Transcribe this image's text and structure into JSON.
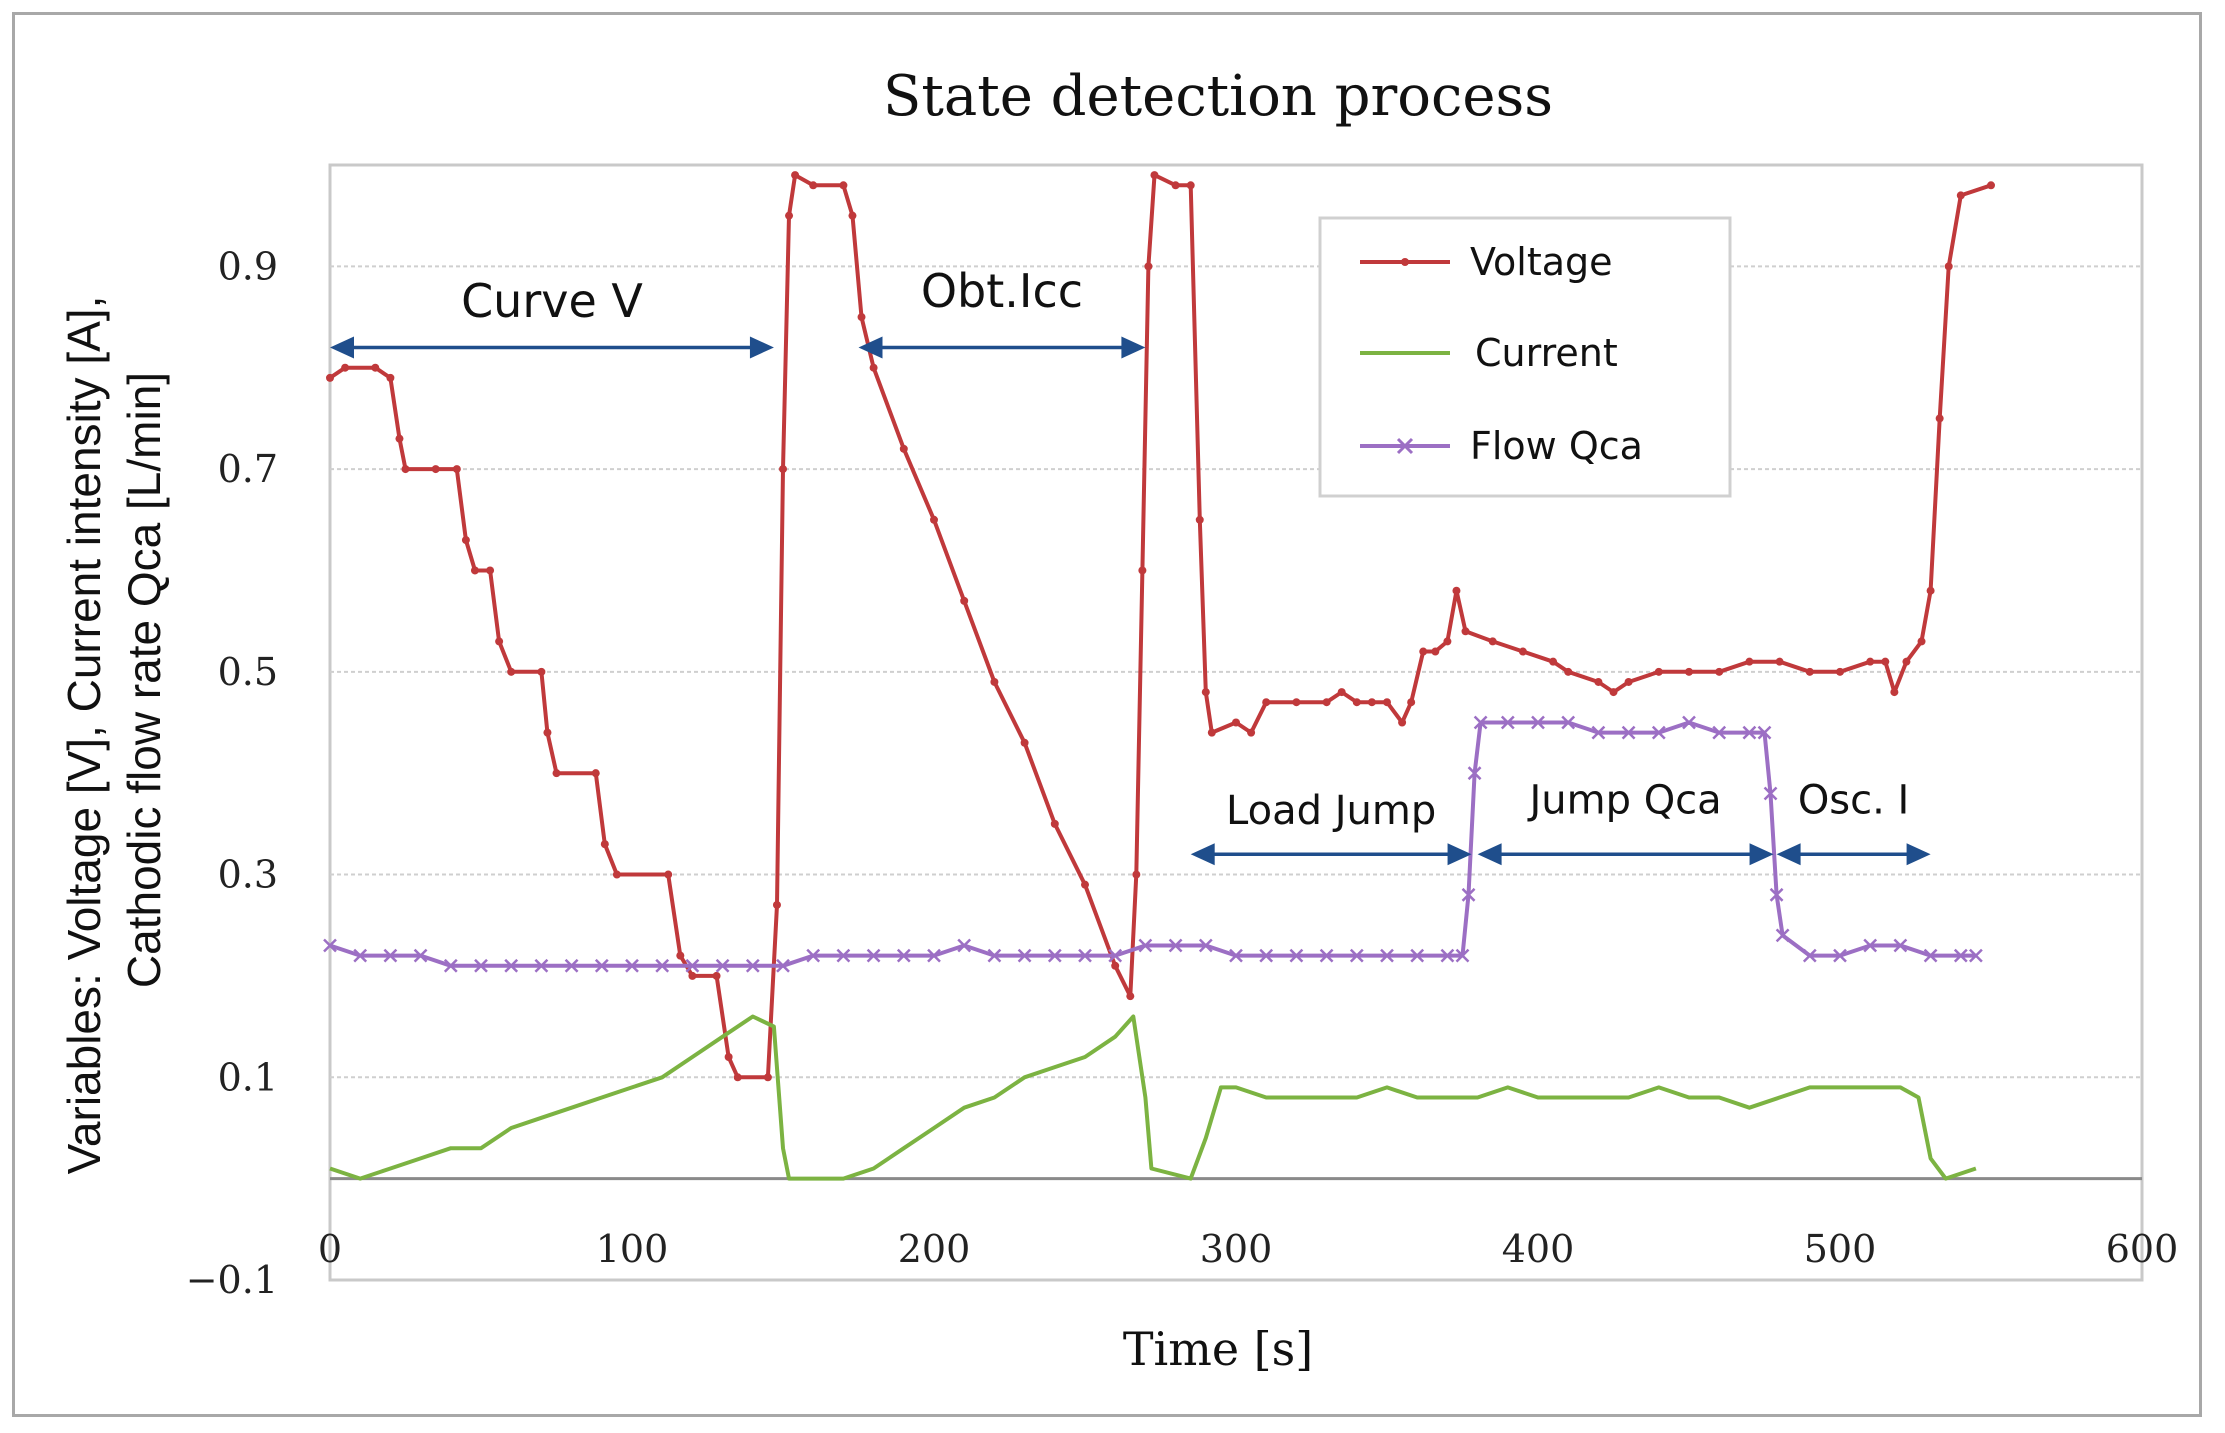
{
  "chart_data": {
    "type": "line",
    "title": "State detection process",
    "xlabel": "Time [s]",
    "ylabel_line1": "Variables: Voltage [V], Current intensity [A],",
    "ylabel_line2": "Cathodic flow rate Qca [L/min]",
    "xlim": [
      0,
      600
    ],
    "ylim": [
      -0.1,
      1.0
    ],
    "x_ticks": [
      0,
      100,
      200,
      300,
      400,
      500,
      600
    ],
    "y_ticks": [
      -0.1,
      0.1,
      0.3,
      0.5,
      0.7,
      0.9
    ],
    "y_tick_labels": [
      "−0.1",
      "0.1",
      "0.3",
      "0.5",
      "0.7",
      "0.9"
    ],
    "gridlines_y": [
      0,
      0.1,
      0.3,
      0.5,
      0.7,
      0.9
    ],
    "legend_position": "top-right",
    "series": [
      {
        "name": "Voltage",
        "color": "#c0393b",
        "marker": "dot",
        "points": [
          [
            0,
            0.79
          ],
          [
            5,
            0.8
          ],
          [
            15,
            0.8
          ],
          [
            20,
            0.79
          ],
          [
            23,
            0.73
          ],
          [
            25,
            0.7
          ],
          [
            35,
            0.7
          ],
          [
            42,
            0.7
          ],
          [
            45,
            0.63
          ],
          [
            48,
            0.6
          ],
          [
            53,
            0.6
          ],
          [
            56,
            0.53
          ],
          [
            60,
            0.5
          ],
          [
            70,
            0.5
          ],
          [
            72,
            0.44
          ],
          [
            75,
            0.4
          ],
          [
            88,
            0.4
          ],
          [
            91,
            0.33
          ],
          [
            95,
            0.3
          ],
          [
            112,
            0.3
          ],
          [
            116,
            0.22
          ],
          [
            120,
            0.2
          ],
          [
            128,
            0.2
          ],
          [
            132,
            0.12
          ],
          [
            135,
            0.1
          ],
          [
            145,
            0.1
          ],
          [
            148,
            0.27
          ],
          [
            150,
            0.7
          ],
          [
            152,
            0.95
          ],
          [
            154,
            0.99
          ],
          [
            160,
            0.98
          ],
          [
            170,
            0.98
          ],
          [
            173,
            0.95
          ],
          [
            176,
            0.85
          ],
          [
            180,
            0.8
          ],
          [
            190,
            0.72
          ],
          [
            200,
            0.65
          ],
          [
            210,
            0.57
          ],
          [
            220,
            0.49
          ],
          [
            230,
            0.43
          ],
          [
            240,
            0.35
          ],
          [
            250,
            0.29
          ],
          [
            260,
            0.21
          ],
          [
            265,
            0.18
          ],
          [
            267,
            0.3
          ],
          [
            269,
            0.6
          ],
          [
            271,
            0.9
          ],
          [
            273,
            0.99
          ],
          [
            280,
            0.98
          ],
          [
            285,
            0.98
          ],
          [
            288,
            0.65
          ],
          [
            290,
            0.48
          ],
          [
            292,
            0.44
          ],
          [
            300,
            0.45
          ],
          [
            305,
            0.44
          ],
          [
            310,
            0.47
          ],
          [
            320,
            0.47
          ],
          [
            330,
            0.47
          ],
          [
            335,
            0.48
          ],
          [
            340,
            0.47
          ],
          [
            345,
            0.47
          ],
          [
            350,
            0.47
          ],
          [
            355,
            0.45
          ],
          [
            358,
            0.47
          ],
          [
            362,
            0.52
          ],
          [
            366,
            0.52
          ],
          [
            370,
            0.53
          ],
          [
            373,
            0.58
          ],
          [
            376,
            0.54
          ],
          [
            385,
            0.53
          ],
          [
            395,
            0.52
          ],
          [
            405,
            0.51
          ],
          [
            410,
            0.5
          ],
          [
            420,
            0.49
          ],
          [
            425,
            0.48
          ],
          [
            430,
            0.49
          ],
          [
            440,
            0.5
          ],
          [
            450,
            0.5
          ],
          [
            460,
            0.5
          ],
          [
            470,
            0.51
          ],
          [
            480,
            0.51
          ],
          [
            490,
            0.5
          ],
          [
            500,
            0.5
          ],
          [
            510,
            0.51
          ],
          [
            515,
            0.51
          ],
          [
            518,
            0.48
          ],
          [
            522,
            0.51
          ],
          [
            527,
            0.53
          ],
          [
            530,
            0.58
          ],
          [
            533,
            0.75
          ],
          [
            536,
            0.9
          ],
          [
            540,
            0.97
          ],
          [
            550,
            0.98
          ]
        ]
      },
      {
        "name": "Current",
        "color": "#7cb342",
        "marker": "none",
        "points": [
          [
            0,
            0.01
          ],
          [
            10,
            0.0
          ],
          [
            20,
            0.01
          ],
          [
            30,
            0.02
          ],
          [
            40,
            0.03
          ],
          [
            50,
            0.03
          ],
          [
            60,
            0.05
          ],
          [
            70,
            0.06
          ],
          [
            80,
            0.07
          ],
          [
            90,
            0.08
          ],
          [
            100,
            0.09
          ],
          [
            110,
            0.1
          ],
          [
            120,
            0.12
          ],
          [
            130,
            0.14
          ],
          [
            140,
            0.16
          ],
          [
            147,
            0.15
          ],
          [
            150,
            0.03
          ],
          [
            152,
            0.0
          ],
          [
            170,
            0.0
          ],
          [
            180,
            0.01
          ],
          [
            190,
            0.03
          ],
          [
            200,
            0.05
          ],
          [
            210,
            0.07
          ],
          [
            220,
            0.08
          ],
          [
            230,
            0.1
          ],
          [
            240,
            0.11
          ],
          [
            250,
            0.12
          ],
          [
            260,
            0.14
          ],
          [
            266,
            0.16
          ],
          [
            270,
            0.08
          ],
          [
            272,
            0.01
          ],
          [
            285,
            0.0
          ],
          [
            290,
            0.04
          ],
          [
            295,
            0.09
          ],
          [
            300,
            0.09
          ],
          [
            310,
            0.08
          ],
          [
            320,
            0.08
          ],
          [
            330,
            0.08
          ],
          [
            340,
            0.08
          ],
          [
            350,
            0.09
          ],
          [
            360,
            0.08
          ],
          [
            370,
            0.08
          ],
          [
            380,
            0.08
          ],
          [
            390,
            0.09
          ],
          [
            400,
            0.08
          ],
          [
            410,
            0.08
          ],
          [
            420,
            0.08
          ],
          [
            430,
            0.08
          ],
          [
            440,
            0.09
          ],
          [
            450,
            0.08
          ],
          [
            460,
            0.08
          ],
          [
            470,
            0.07
          ],
          [
            480,
            0.08
          ],
          [
            490,
            0.09
          ],
          [
            500,
            0.09
          ],
          [
            510,
            0.09
          ],
          [
            520,
            0.09
          ],
          [
            526,
            0.08
          ],
          [
            530,
            0.02
          ],
          [
            535,
            0.0
          ],
          [
            545,
            0.01
          ]
        ]
      },
      {
        "name": "Flow Qca",
        "color": "#9c6fc4",
        "marker": "x",
        "points": [
          [
            0,
            0.23
          ],
          [
            10,
            0.22
          ],
          [
            20,
            0.22
          ],
          [
            30,
            0.22
          ],
          [
            40,
            0.21
          ],
          [
            50,
            0.21
          ],
          [
            60,
            0.21
          ],
          [
            70,
            0.21
          ],
          [
            80,
            0.21
          ],
          [
            90,
            0.21
          ],
          [
            100,
            0.21
          ],
          [
            110,
            0.21
          ],
          [
            120,
            0.21
          ],
          [
            130,
            0.21
          ],
          [
            140,
            0.21
          ],
          [
            150,
            0.21
          ],
          [
            160,
            0.22
          ],
          [
            170,
            0.22
          ],
          [
            180,
            0.22
          ],
          [
            190,
            0.22
          ],
          [
            200,
            0.22
          ],
          [
            210,
            0.23
          ],
          [
            220,
            0.22
          ],
          [
            230,
            0.22
          ],
          [
            240,
            0.22
          ],
          [
            250,
            0.22
          ],
          [
            260,
            0.22
          ],
          [
            270,
            0.23
          ],
          [
            280,
            0.23
          ],
          [
            290,
            0.23
          ],
          [
            300,
            0.22
          ],
          [
            310,
            0.22
          ],
          [
            320,
            0.22
          ],
          [
            330,
            0.22
          ],
          [
            340,
            0.22
          ],
          [
            350,
            0.22
          ],
          [
            360,
            0.22
          ],
          [
            370,
            0.22
          ],
          [
            375,
            0.22
          ],
          [
            377,
            0.28
          ],
          [
            379,
            0.4
          ],
          [
            381,
            0.45
          ],
          [
            390,
            0.45
          ],
          [
            400,
            0.45
          ],
          [
            410,
            0.45
          ],
          [
            420,
            0.44
          ],
          [
            430,
            0.44
          ],
          [
            440,
            0.44
          ],
          [
            450,
            0.45
          ],
          [
            460,
            0.44
          ],
          [
            470,
            0.44
          ],
          [
            475,
            0.44
          ],
          [
            477,
            0.38
          ],
          [
            479,
            0.28
          ],
          [
            481,
            0.24
          ],
          [
            490,
            0.22
          ],
          [
            500,
            0.22
          ],
          [
            510,
            0.23
          ],
          [
            520,
            0.23
          ],
          [
            530,
            0.22
          ],
          [
            540,
            0.22
          ],
          [
            545,
            0.22
          ]
        ]
      }
    ],
    "annotations": [
      {
        "label": "Curve V",
        "from": 0,
        "to": 147,
        "y": 0.82,
        "text_y": 0.85
      },
      {
        "label": "Obt.Icc",
        "from": 175,
        "to": 270,
        "y": 0.82,
        "text_y": 0.86
      },
      {
        "label": "Load Jump",
        "from": 285,
        "to": 378,
        "y": 0.32,
        "text_y": 0.35
      },
      {
        "label": "Jump Qca",
        "from": 380,
        "to": 478,
        "y": 0.32,
        "text_y": 0.36
      },
      {
        "label": "Osc. I",
        "from": 479,
        "to": 530,
        "y": 0.32,
        "text_y": 0.36
      }
    ]
  }
}
